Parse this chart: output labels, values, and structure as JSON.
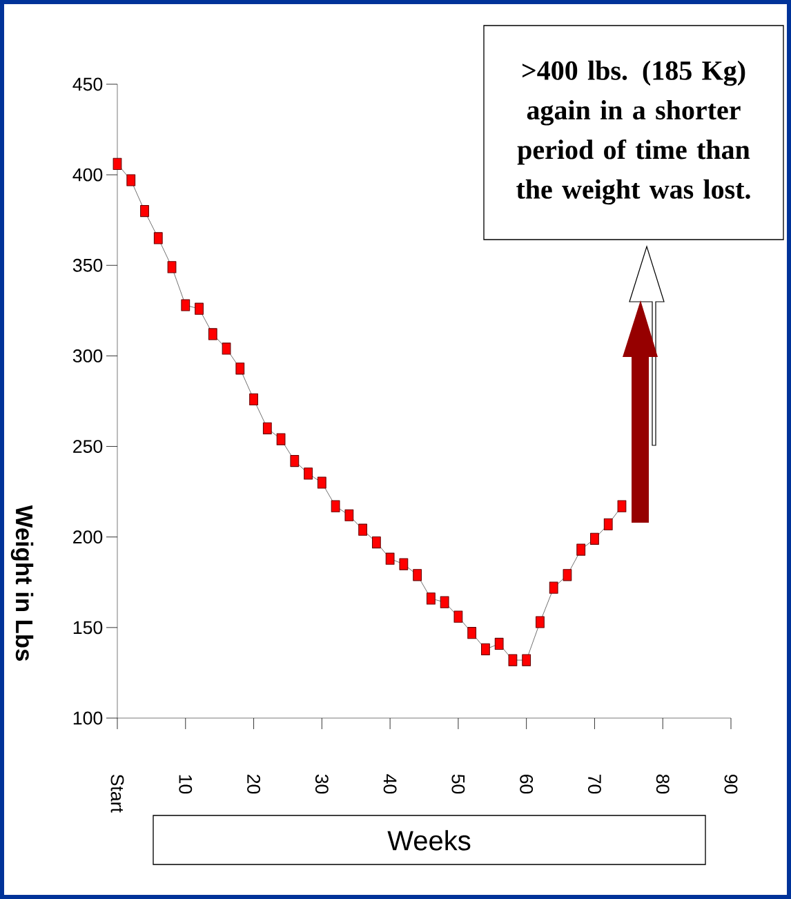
{
  "chart_data": {
    "type": "line",
    "xlabel": "Weeks",
    "ylabel": "Weight in Lbs",
    "annotations": [
      ">400 lbs. (185 Kg) again in a shorter period of time than the weight was lost."
    ],
    "x": [
      0,
      2,
      4,
      6,
      8,
      10,
      12,
      14,
      16,
      18,
      20,
      22,
      24,
      26,
      28,
      30,
      32,
      34,
      36,
      38,
      40,
      42,
      44,
      46,
      48,
      50,
      52,
      54,
      56,
      58,
      60,
      62,
      64,
      66,
      68,
      70,
      72,
      74
    ],
    "series": [
      {
        "color": "#ff0000",
        "values": [
          406,
          397,
          380,
          365,
          349,
          328,
          326,
          312,
          304,
          293,
          276,
          260,
          254,
          242,
          235,
          230,
          217,
          212,
          204,
          197,
          188,
          185,
          179,
          166,
          164,
          156,
          147,
          138,
          141,
          132,
          132,
          153,
          172,
          179,
          193,
          199,
          207,
          217
        ]
      }
    ],
    "xlim": [
      0,
      90
    ],
    "ylim": [
      100,
      450
    ],
    "xticks": [
      {
        "value": 0,
        "label": "Start"
      },
      10,
      20,
      30,
      40,
      50,
      60,
      70,
      80,
      90
    ],
    "yticks": [
      100,
      150,
      200,
      250,
      300,
      350,
      400,
      450
    ],
    "marker": "square",
    "grid": false
  }
}
